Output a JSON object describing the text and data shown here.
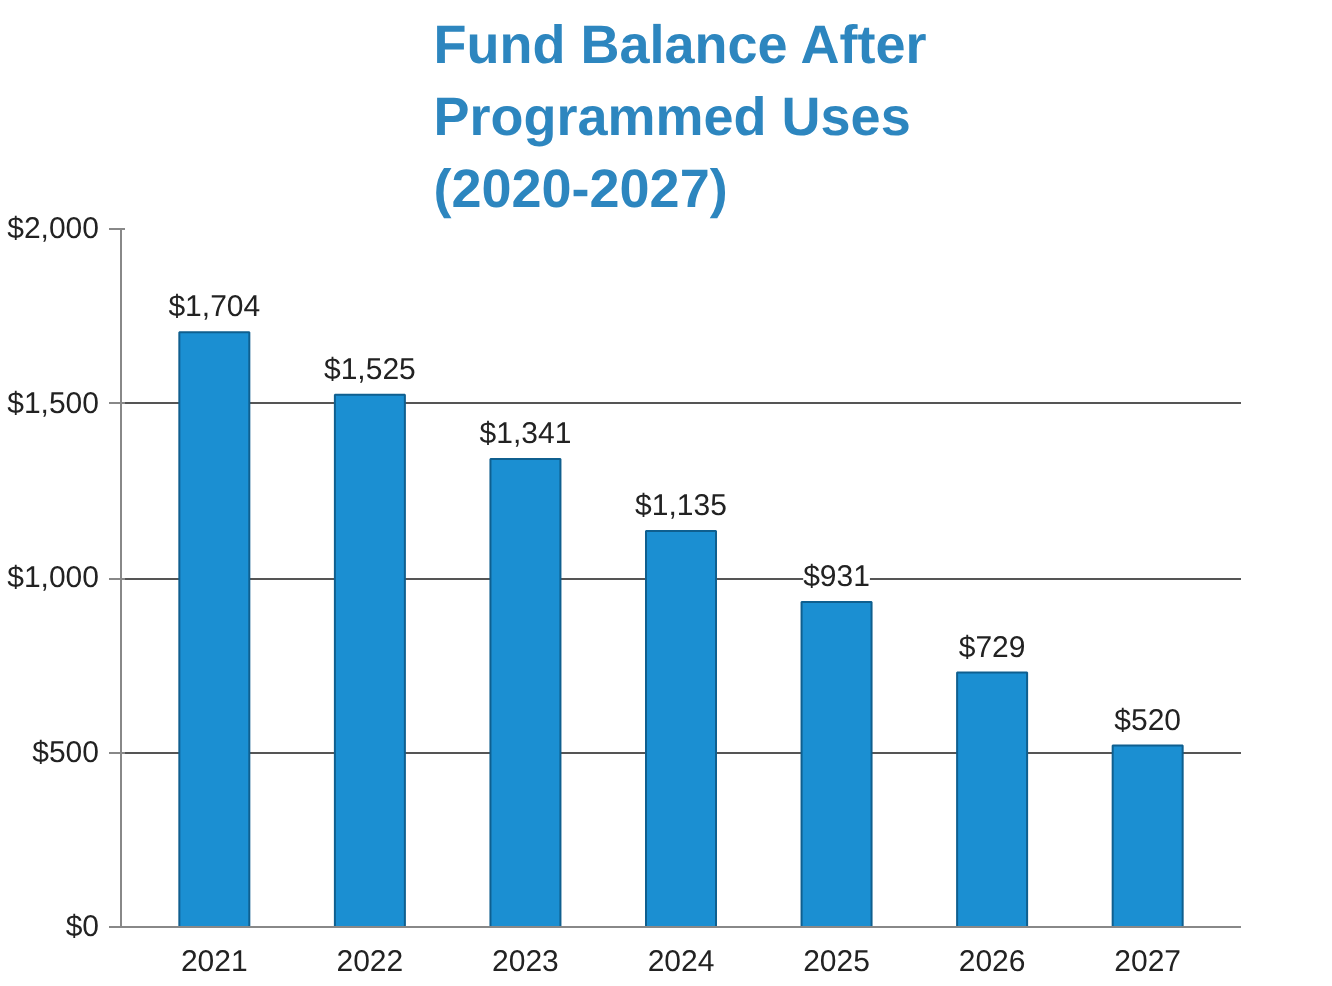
{
  "chart_data": {
    "type": "bar",
    "title": "Fund Balance After\nProgrammed Uses\n(2020-2027)",
    "categories": [
      "2021",
      "2022",
      "2023",
      "2024",
      "2025",
      "2026",
      "2027"
    ],
    "values": [
      1704,
      1525,
      1341,
      1135,
      931,
      729,
      520
    ],
    "value_labels": [
      "$1,704",
      "$1,525",
      "$1,341",
      "$1,135",
      "$931",
      "$729",
      "$520"
    ],
    "color": "#1b8fd2",
    "ylim": [
      0,
      2000
    ],
    "yticks": [
      {
        "value": 0,
        "label": "$0"
      },
      {
        "value": 500,
        "label": "$500"
      },
      {
        "value": 1000,
        "label": "$1,000"
      },
      {
        "value": 1500,
        "label": "$1,500"
      },
      {
        "value": 2000,
        "label": "$2,000"
      }
    ],
    "grid": "y"
  }
}
